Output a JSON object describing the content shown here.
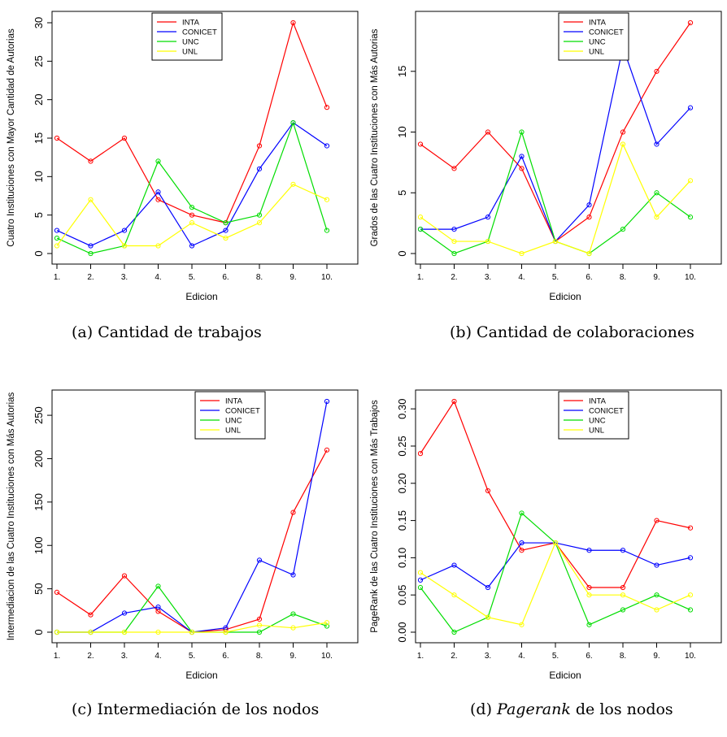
{
  "charts": [
    {
      "caption": {
        "prefix": "(a) Cantidad de trabajos",
        "em": "",
        "suffix": ""
      }
    },
    {
      "caption": {
        "prefix": "(b) Cantidad de colaboraciones",
        "em": "",
        "suffix": ""
      }
    },
    {
      "caption": {
        "prefix": "(c) Intermediación de los nodos",
        "em": "",
        "suffix": ""
      }
    },
    {
      "caption": {
        "prefix": "(d) ",
        "em": "Pagerank",
        "suffix": " de los nodos"
      }
    }
  ],
  "chart_data": [
    {
      "type": "line",
      "xlabel": "Edicion",
      "ylabel": "Cuatro Instituciones con Mayor Cantidad de Autorias",
      "categories": [
        "1.",
        "2.",
        "3.",
        "4.",
        "5.",
        "6.",
        "8.",
        "9.",
        "10."
      ],
      "ylim": [
        0,
        30
      ],
      "yticks": [
        "0",
        "5",
        "10",
        "15",
        "20",
        "25",
        "30"
      ],
      "ytick_values": [
        0,
        5,
        10,
        15,
        20,
        25,
        30
      ],
      "legend_position": "top-center",
      "series": [
        {
          "name": "INTA",
          "color": "#ff0000",
          "values": [
            15,
            12,
            15,
            7,
            5,
            4,
            14,
            30,
            19
          ]
        },
        {
          "name": "CONICET",
          "color": "#0000ff",
          "values": [
            3,
            1,
            3,
            8,
            1,
            3,
            11,
            17,
            14
          ]
        },
        {
          "name": "UNC",
          "color": "#00dd00",
          "values": [
            2,
            0,
            1,
            12,
            6,
            4,
            5,
            17,
            3
          ]
        },
        {
          "name": "UNL",
          "color": "#ffff00",
          "values": [
            1,
            7,
            1,
            1,
            4,
            2,
            4,
            9,
            7
          ]
        }
      ]
    },
    {
      "type": "line",
      "xlabel": "Edicion",
      "ylabel": "Grados de las Cuatro Instituciones con Más Autorias",
      "categories": [
        "1.",
        "2.",
        "3.",
        "4.",
        "5.",
        "6.",
        "8.",
        "9.",
        "10."
      ],
      "ylim": [
        0,
        19
      ],
      "yticks": [
        "0",
        "5",
        "10",
        "15"
      ],
      "ytick_values": [
        0,
        5,
        10,
        15
      ],
      "legend_position": "top-right",
      "series": [
        {
          "name": "INTA",
          "color": "#ff0000",
          "values": [
            9,
            7,
            10,
            7,
            1,
            3,
            10,
            15,
            19
          ]
        },
        {
          "name": "CONICET",
          "color": "#0000ff",
          "values": [
            2,
            2,
            3,
            8,
            1,
            4,
            17,
            9,
            12
          ]
        },
        {
          "name": "UNC",
          "color": "#00dd00",
          "values": [
            2,
            0,
            1,
            10,
            1,
            0,
            2,
            5,
            3
          ]
        },
        {
          "name": "UNL",
          "color": "#ffff00",
          "values": [
            3,
            1,
            1,
            0,
            1,
            0,
            9,
            3,
            6
          ]
        }
      ]
    },
    {
      "type": "line",
      "xlabel": "Edicion",
      "ylabel": "Intermediacion de las Cuatro Instituciones con Más Autorias",
      "categories": [
        "1.",
        "2.",
        "3.",
        "4.",
        "5.",
        "6.",
        "8.",
        "9.",
        "10."
      ],
      "ylim": [
        0,
        266
      ],
      "yticks": [
        "0",
        "50",
        "100",
        "150",
        "200",
        "250"
      ],
      "ytick_values": [
        0,
        50,
        100,
        150,
        200,
        250
      ],
      "legend_position": "top-right",
      "series": [
        {
          "name": "INTA",
          "color": "#ff0000",
          "values": [
            46,
            20,
            65,
            24,
            0,
            3,
            15,
            138,
            210
          ]
        },
        {
          "name": "CONICET",
          "color": "#0000ff",
          "values": [
            0,
            0,
            22,
            29,
            0,
            5,
            83,
            66,
            266
          ]
        },
        {
          "name": "UNC",
          "color": "#00dd00",
          "values": [
            0,
            0,
            0,
            53,
            0,
            0,
            0,
            21,
            7
          ]
        },
        {
          "name": "UNL",
          "color": "#ffff00",
          "values": [
            0,
            0,
            0,
            0,
            0,
            0,
            8,
            5,
            11
          ]
        }
      ]
    },
    {
      "type": "line",
      "xlabel": "Edicion",
      "ylabel": "PageRank de las Cuatro Instituciones con Más Trabajos",
      "categories": [
        "1.",
        "2.",
        "3.",
        "4.",
        "5.",
        "6.",
        "8.",
        "9.",
        "10."
      ],
      "ylim": [
        0,
        0.31
      ],
      "yticks": [
        "0.00",
        "0.05",
        "0.10",
        "0.15",
        "0.20",
        "0.25",
        "0.30"
      ],
      "ytick_values": [
        0,
        0.05,
        0.1,
        0.15,
        0.2,
        0.25,
        0.3
      ],
      "legend_position": "top-right",
      "series": [
        {
          "name": "INTA",
          "color": "#ff0000",
          "values": [
            0.24,
            0.31,
            0.19,
            0.11,
            0.12,
            0.06,
            0.06,
            0.15,
            0.14
          ]
        },
        {
          "name": "CONICET",
          "color": "#0000ff",
          "values": [
            0.07,
            0.09,
            0.06,
            0.12,
            0.12,
            0.11,
            0.11,
            0.09,
            0.1
          ]
        },
        {
          "name": "UNC",
          "color": "#00dd00",
          "values": [
            0.06,
            0.0,
            0.02,
            0.16,
            0.12,
            0.01,
            0.03,
            0.05,
            0.03
          ]
        },
        {
          "name": "UNL",
          "color": "#ffff00",
          "values": [
            0.08,
            0.05,
            0.02,
            0.01,
            0.12,
            0.05,
            0.05,
            0.03,
            0.05
          ]
        }
      ]
    }
  ]
}
